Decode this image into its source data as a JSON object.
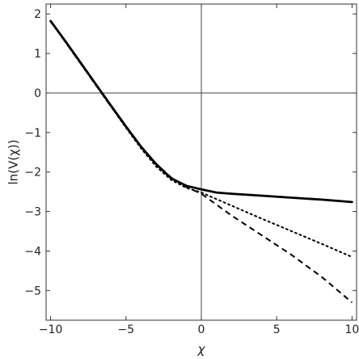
{
  "chart_data": {
    "type": "line",
    "title": "",
    "xlabel": "χ",
    "ylabel": "ln(V(χ))",
    "xlim": [
      -10.3,
      10.3
    ],
    "ylim": [
      -5.75,
      2.25
    ],
    "xticks": [
      -10,
      -5,
      0,
      5,
      10
    ],
    "xtick_labels": [
      "−10",
      "−5",
      "0",
      "5",
      "10"
    ],
    "yticks": [
      2,
      1,
      0,
      -1,
      -2,
      -3,
      -4,
      -5
    ],
    "ytick_labels": [
      "2",
      "1",
      "0",
      "−1",
      "−2",
      "−3",
      "−4",
      "−5"
    ],
    "reference_lines": {
      "x": 0,
      "y": 0
    },
    "grid": false,
    "legend": "none",
    "series": [
      {
        "style": "solid",
        "color": "#000000",
        "points": [
          [
            -10,
            1.82
          ],
          [
            -9,
            1.3
          ],
          [
            -8,
            0.76
          ],
          [
            -7,
            0.22
          ],
          [
            -6,
            -0.32
          ],
          [
            -5,
            -0.85
          ],
          [
            -4,
            -1.36
          ],
          [
            -3,
            -1.8
          ],
          [
            -2,
            -2.16
          ],
          [
            -1,
            -2.35
          ],
          [
            0,
            -2.44
          ],
          [
            1,
            -2.52
          ],
          [
            2,
            -2.55
          ],
          [
            4,
            -2.6
          ],
          [
            6,
            -2.65
          ],
          [
            8,
            -2.7
          ],
          [
            10,
            -2.76
          ]
        ]
      },
      {
        "style": "dotted",
        "color": "#000000",
        "points": [
          [
            -10,
            1.82
          ],
          [
            -9,
            1.28
          ],
          [
            -8,
            0.74
          ],
          [
            -7,
            0.2
          ],
          [
            -6,
            -0.34
          ],
          [
            -5,
            -0.88
          ],
          [
            -4,
            -1.4
          ],
          [
            -3,
            -1.86
          ],
          [
            -2,
            -2.2
          ],
          [
            -1,
            -2.4
          ],
          [
            0,
            -2.52
          ],
          [
            2,
            -2.85
          ],
          [
            4,
            -3.18
          ],
          [
            6,
            -3.5
          ],
          [
            8,
            -3.82
          ],
          [
            10,
            -4.15
          ]
        ]
      },
      {
        "style": "dashed",
        "color": "#000000",
        "points": [
          [
            -10,
            1.82
          ],
          [
            -9,
            1.28
          ],
          [
            -8,
            0.74
          ],
          [
            -7,
            0.2
          ],
          [
            -6,
            -0.34
          ],
          [
            -5,
            -0.86
          ],
          [
            -4,
            -1.35
          ],
          [
            -3,
            -1.79
          ],
          [
            -2,
            -2.14
          ],
          [
            -1,
            -2.38
          ],
          [
            0,
            -2.55
          ],
          [
            2,
            -3.1
          ],
          [
            4,
            -3.6
          ],
          [
            6,
            -4.1
          ],
          [
            8,
            -4.66
          ],
          [
            10,
            -5.3
          ]
        ]
      }
    ]
  }
}
